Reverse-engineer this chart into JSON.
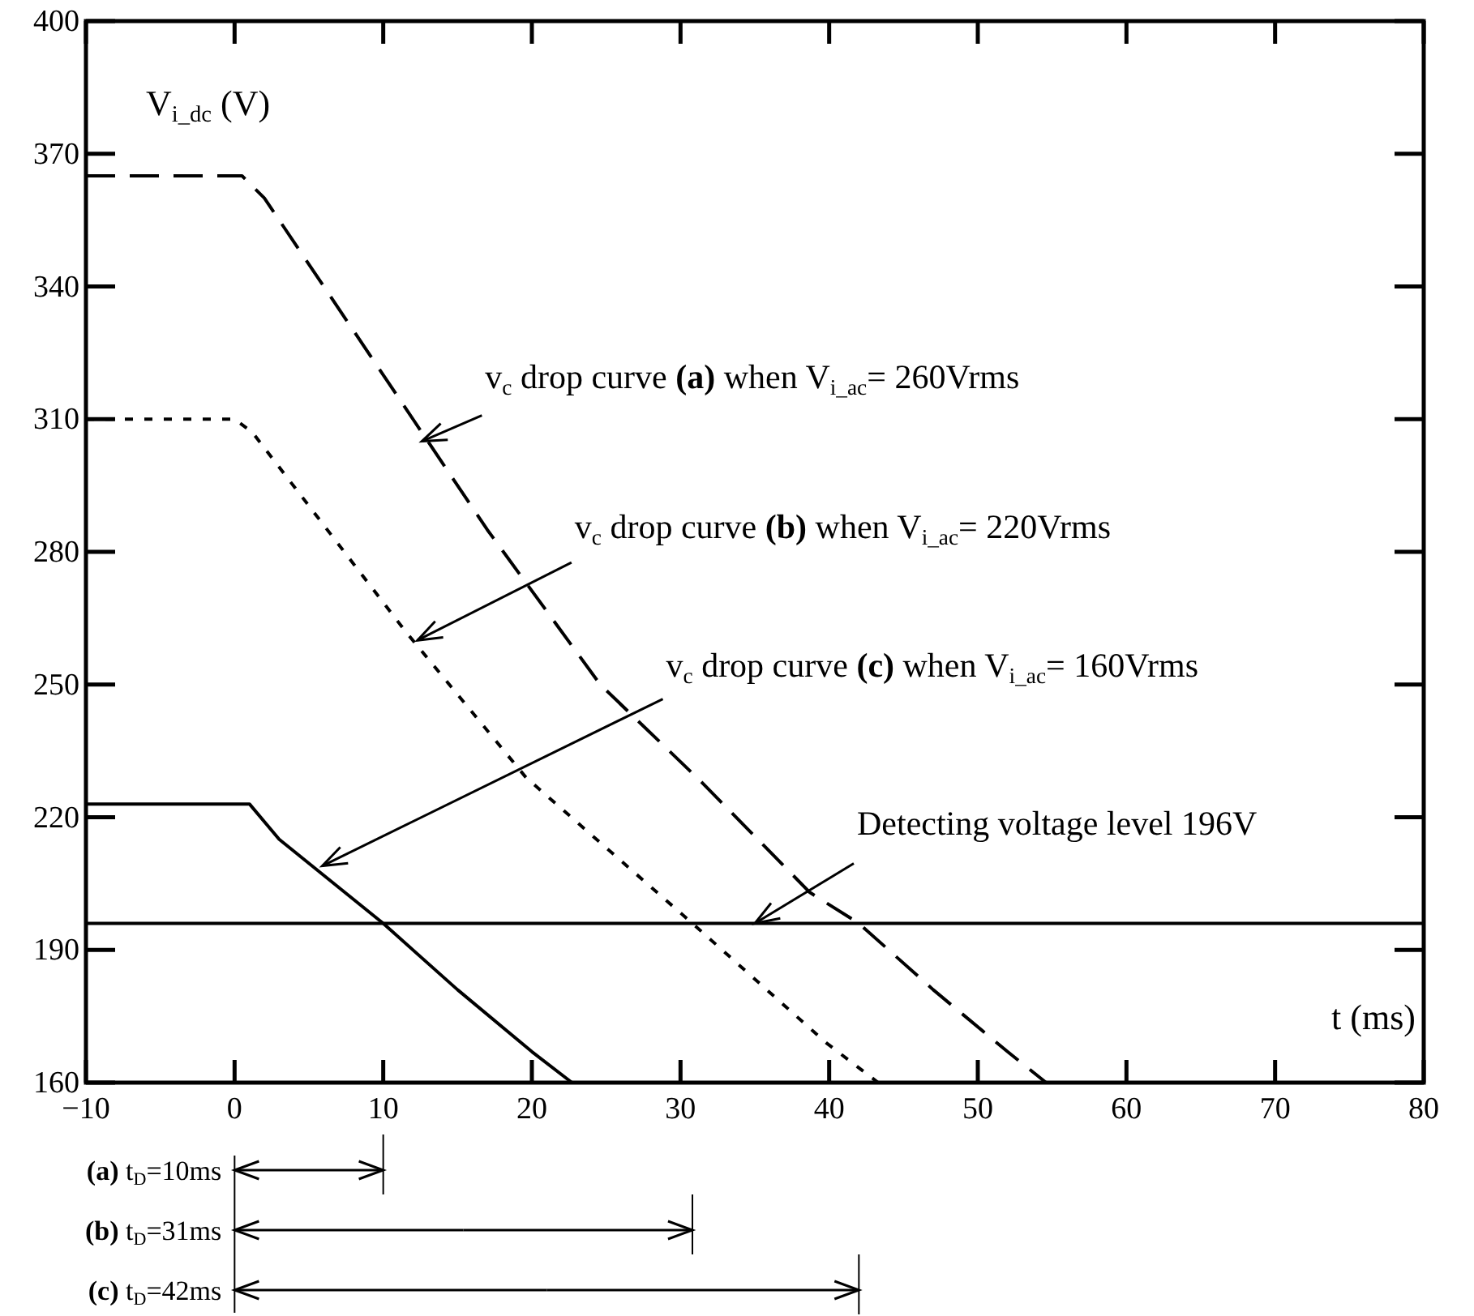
{
  "chart_data": {
    "type": "line",
    "xlabel": "t (ms)",
    "ylabel": "V$_{i_dc}$ (V)",
    "xlim": [
      -10,
      80
    ],
    "xticks": [
      -10,
      0,
      10,
      20,
      30,
      40,
      50,
      60,
      70,
      80
    ],
    "ylim": [
      160,
      400
    ],
    "yticks": [
      160,
      190,
      220,
      250,
      280,
      310,
      340,
      370,
      400
    ],
    "grid": false,
    "marker": "none",
    "series": [
      {
        "color": "#000000",
        "line_style": "dashed",
        "x": [
          -10,
          0.5,
          2,
          9,
          17,
          24.6,
          31.4,
          38.7,
          42,
          47,
          52,
          54.6
        ],
        "values": [
          365,
          365,
          360,
          325,
          285,
          250,
          228,
          203,
          196,
          181,
          167,
          160
        ]
      },
      {
        "color": "#000000",
        "line_style": "dotted",
        "x": [
          -10,
          0,
          1.2,
          11.5,
          19.6,
          30.8,
          39.8,
          43.3
        ],
        "values": [
          310,
          310,
          307,
          262,
          229,
          196,
          169,
          160
        ]
      },
      {
        "color": "#000000",
        "line_style": "solid",
        "x": [
          -10,
          1,
          3,
          10,
          15,
          20,
          22.7
        ],
        "values": [
          223,
          223,
          215,
          196,
          181,
          167,
          160
        ]
      }
    ],
    "ref_lines": [
      {
        "axis": "y",
        "value": 196,
        "color": "#000000"
      }
    ],
    "annotations": [
      {
        "text": "v$_{c}$ drop curve (a) when V$_{i_ac}$= 260Vrms",
        "x": 12.6,
        "y": 305
      },
      {
        "text": "v$_{c}$ drop curve (b) when V$_{i_ac}$= 220Vrms",
        "x": 12.3,
        "y": 260
      },
      {
        "text": "v$_{c}$ drop curve (c) when V$_{i_ac}$= 160Vrms",
        "x": 5.9,
        "y": 209
      },
      {
        "text": "Detecting voltage level 196V",
        "x": 35,
        "y": 196
      },
      "(a) t$_{D}$=10ms",
      "(b) t$_{D}$=31ms",
      "(c) t$_{D}$=42ms"
    ]
  }
}
